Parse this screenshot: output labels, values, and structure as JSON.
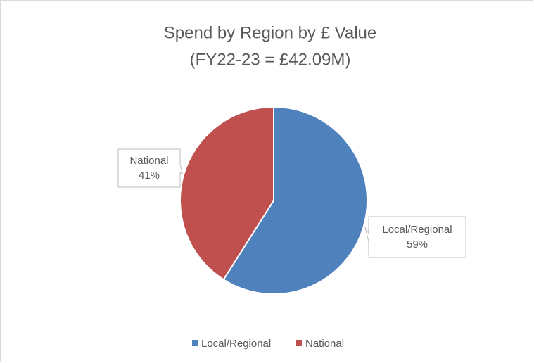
{
  "chart_data": {
    "type": "pie",
    "title": [
      "Spend by Region  by £ Value",
      "(FY22-23 = £42.09M)"
    ],
    "categories": [
      "Local/Regional",
      "National"
    ],
    "values": [
      59,
      41
    ],
    "value_labels": [
      "59%",
      "41%"
    ],
    "colors": [
      "#4f81bd",
      "#c0504d"
    ],
    "legend": "bottom"
  }
}
